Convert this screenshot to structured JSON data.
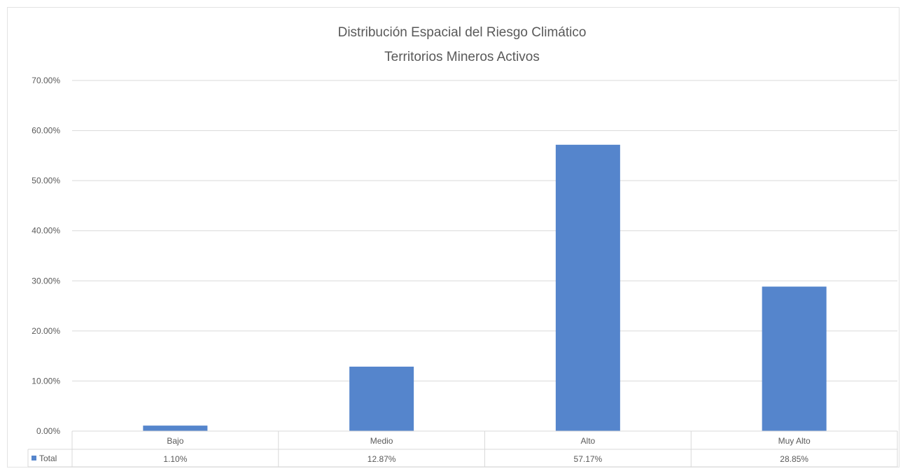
{
  "chart_data": {
    "type": "bar",
    "title": "Distribución Espacial del Riesgo Climático",
    "subtitle": "Territorios Mineros Activos",
    "categories": [
      "Bajo",
      "Medio",
      "Alto",
      "Muy Alto"
    ],
    "series": [
      {
        "name": "Total",
        "values": [
          1.1,
          12.87,
          57.17,
          28.85
        ],
        "labels": [
          "1.10%",
          "12.87%",
          "57.17%",
          "28.85%"
        ],
        "color": "#5585cc"
      }
    ],
    "y_ticks": [
      "0.00%",
      "10.00%",
      "20.00%",
      "30.00%",
      "40.00%",
      "50.00%",
      "60.00%",
      "70.00%"
    ],
    "ylim": [
      0,
      70
    ],
    "grid": true,
    "legend": "data-table",
    "data_table": true
  }
}
